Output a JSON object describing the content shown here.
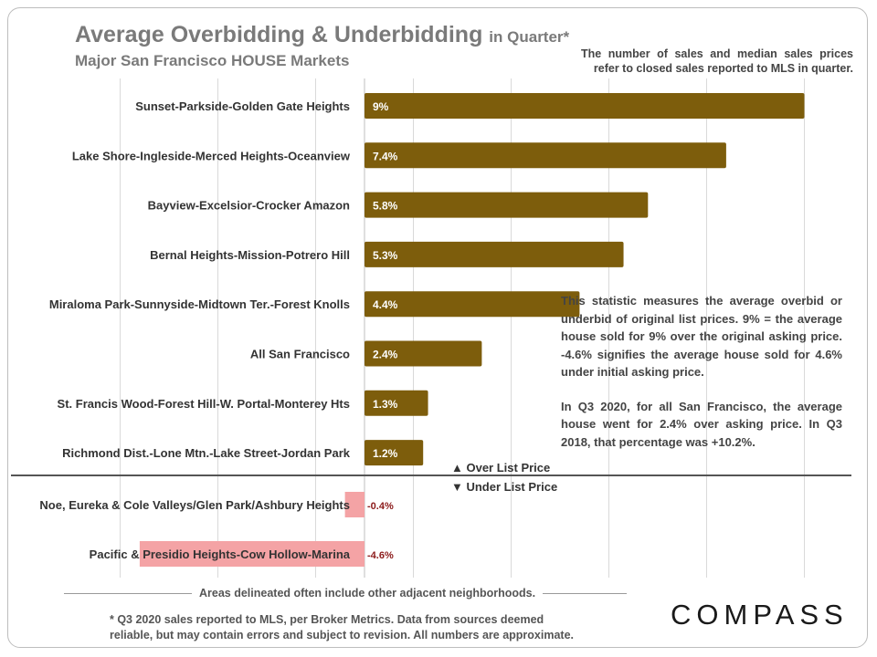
{
  "header": {
    "title": "Average Overbidding & Underbidding",
    "title_suffix": "in Quarter*",
    "subtitle": "Major San Francisco HOUSE Markets",
    "note": "The number of sales and median sales prices refer to closed sales reported to MLS in quarter."
  },
  "chart_data": {
    "type": "bar",
    "orientation": "horizontal",
    "categories": [
      "Sunset-Parkside-Golden Gate Heights",
      "Lake Shore-Ingleside-Merced Heights-Oceanview",
      "Bayview-Excelsior-Crocker Amazon",
      "Bernal Heights-Mission-Potrero Hill",
      "Miraloma Park-Sunnyside-Midtown Ter.-Forest Knolls",
      "All San Francisco",
      "St. Francis Wood-Forest Hill-W. Portal-Monterey Hts",
      "Richmond Dist.-Lone Mtn.-Lake Street-Jordan Park",
      "Noe, Eureka & Cole Valleys/Glen Park/Ashbury Heights",
      "Pacific & Presidio Heights-Cow Hollow-Marina"
    ],
    "values": [
      9,
      7.4,
      5.8,
      5.3,
      4.4,
      2.4,
      1.3,
      1.2,
      -0.4,
      -4.6
    ],
    "value_labels": [
      "9%",
      "7.4%",
      "5.8%",
      "5.3%",
      "4.4%",
      "2.4%",
      "1.3%",
      "1.2%",
      "-0.4%",
      "-4.6%"
    ],
    "xlim": [
      -5,
      10
    ],
    "grid": true,
    "colors": {
      "positive": "#7d5d0c",
      "negative": "#f4a3a5",
      "negative_label": "#8b1a1a"
    },
    "over_label": "Over List Price",
    "under_label": "Under List Price"
  },
  "annotation": {
    "para1": "This statistic measures the average overbid or underbid of original list prices. 9% = the average house sold for 9% over the original asking price. -4.6% signifies the average house sold for 4.6% under initial asking price.",
    "para2": "In Q3 2020, for all San Francisco, the average house went for 2.4% over asking price. In Q3 2018, that percentage was +10.2%."
  },
  "footer": {
    "areas_note": "Areas delineated often include other adjacent neighborhoods.",
    "source": "* Q3 2020 sales reported to MLS, per Broker Metrics. Data from sources deemed reliable, but may contain errors and subject to revision. All numbers are approximate.",
    "logo": "COMPASS"
  }
}
